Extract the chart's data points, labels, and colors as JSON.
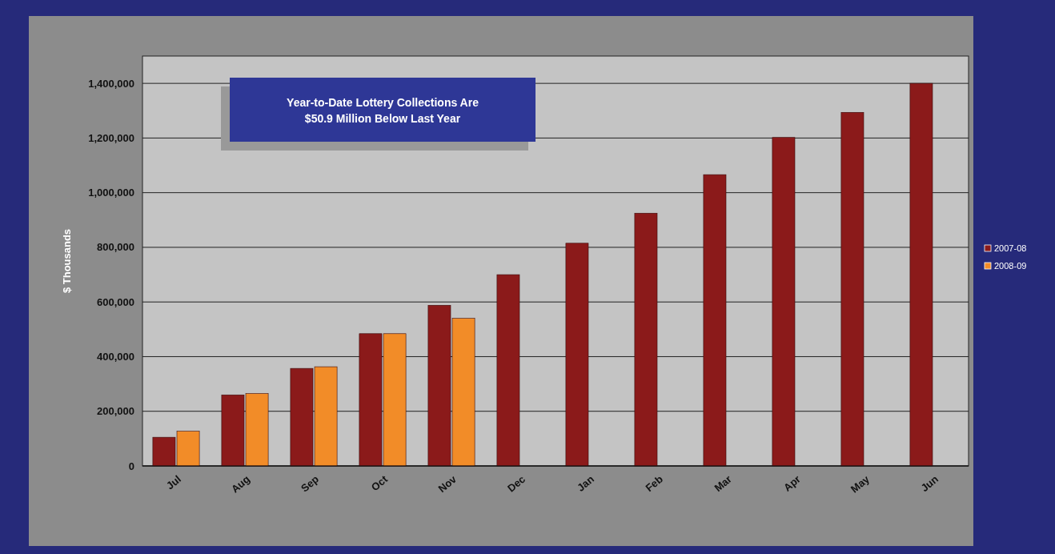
{
  "chart_data": {
    "type": "bar",
    "ylabel": "$ Thousands",
    "categories": [
      "Jul",
      "Aug",
      "Sep",
      "Oct",
      "Nov",
      "Dec",
      "Jan",
      "Feb",
      "Mar",
      "Apr",
      "May",
      "Jun"
    ],
    "series": [
      {
        "name": "2007-08",
        "color": "#8b1a1a",
        "values": [
          105000,
          260000,
          357000,
          484000,
          588000,
          700000,
          815000,
          925000,
          1066000,
          1202000,
          1294000,
          1400000
        ]
      },
      {
        "name": "2008-09",
        "color": "#f28c28",
        "values": [
          127000,
          265000,
          363000,
          484000,
          540000,
          null,
          null,
          null,
          null,
          null,
          null,
          null
        ]
      }
    ],
    "ylim": [
      0,
      1500000
    ],
    "yticks": [
      {
        "value": 0,
        "label": "0"
      },
      {
        "value": 200000,
        "label": "200,000"
      },
      {
        "value": 400000,
        "label": "400,000"
      },
      {
        "value": 600000,
        "label": "600,000"
      },
      {
        "value": 800000,
        "label": "800,000"
      },
      {
        "value": 1000000,
        "label": "1,000,000"
      },
      {
        "value": 1200000,
        "label": "1,200,000"
      },
      {
        "value": 1400000,
        "label": "1,400,000"
      }
    ],
    "grid": "y",
    "legend": "right",
    "annotations": [
      "Year-to-Date Lottery Collections Are $50.9 Million Below Last Year"
    ]
  }
}
